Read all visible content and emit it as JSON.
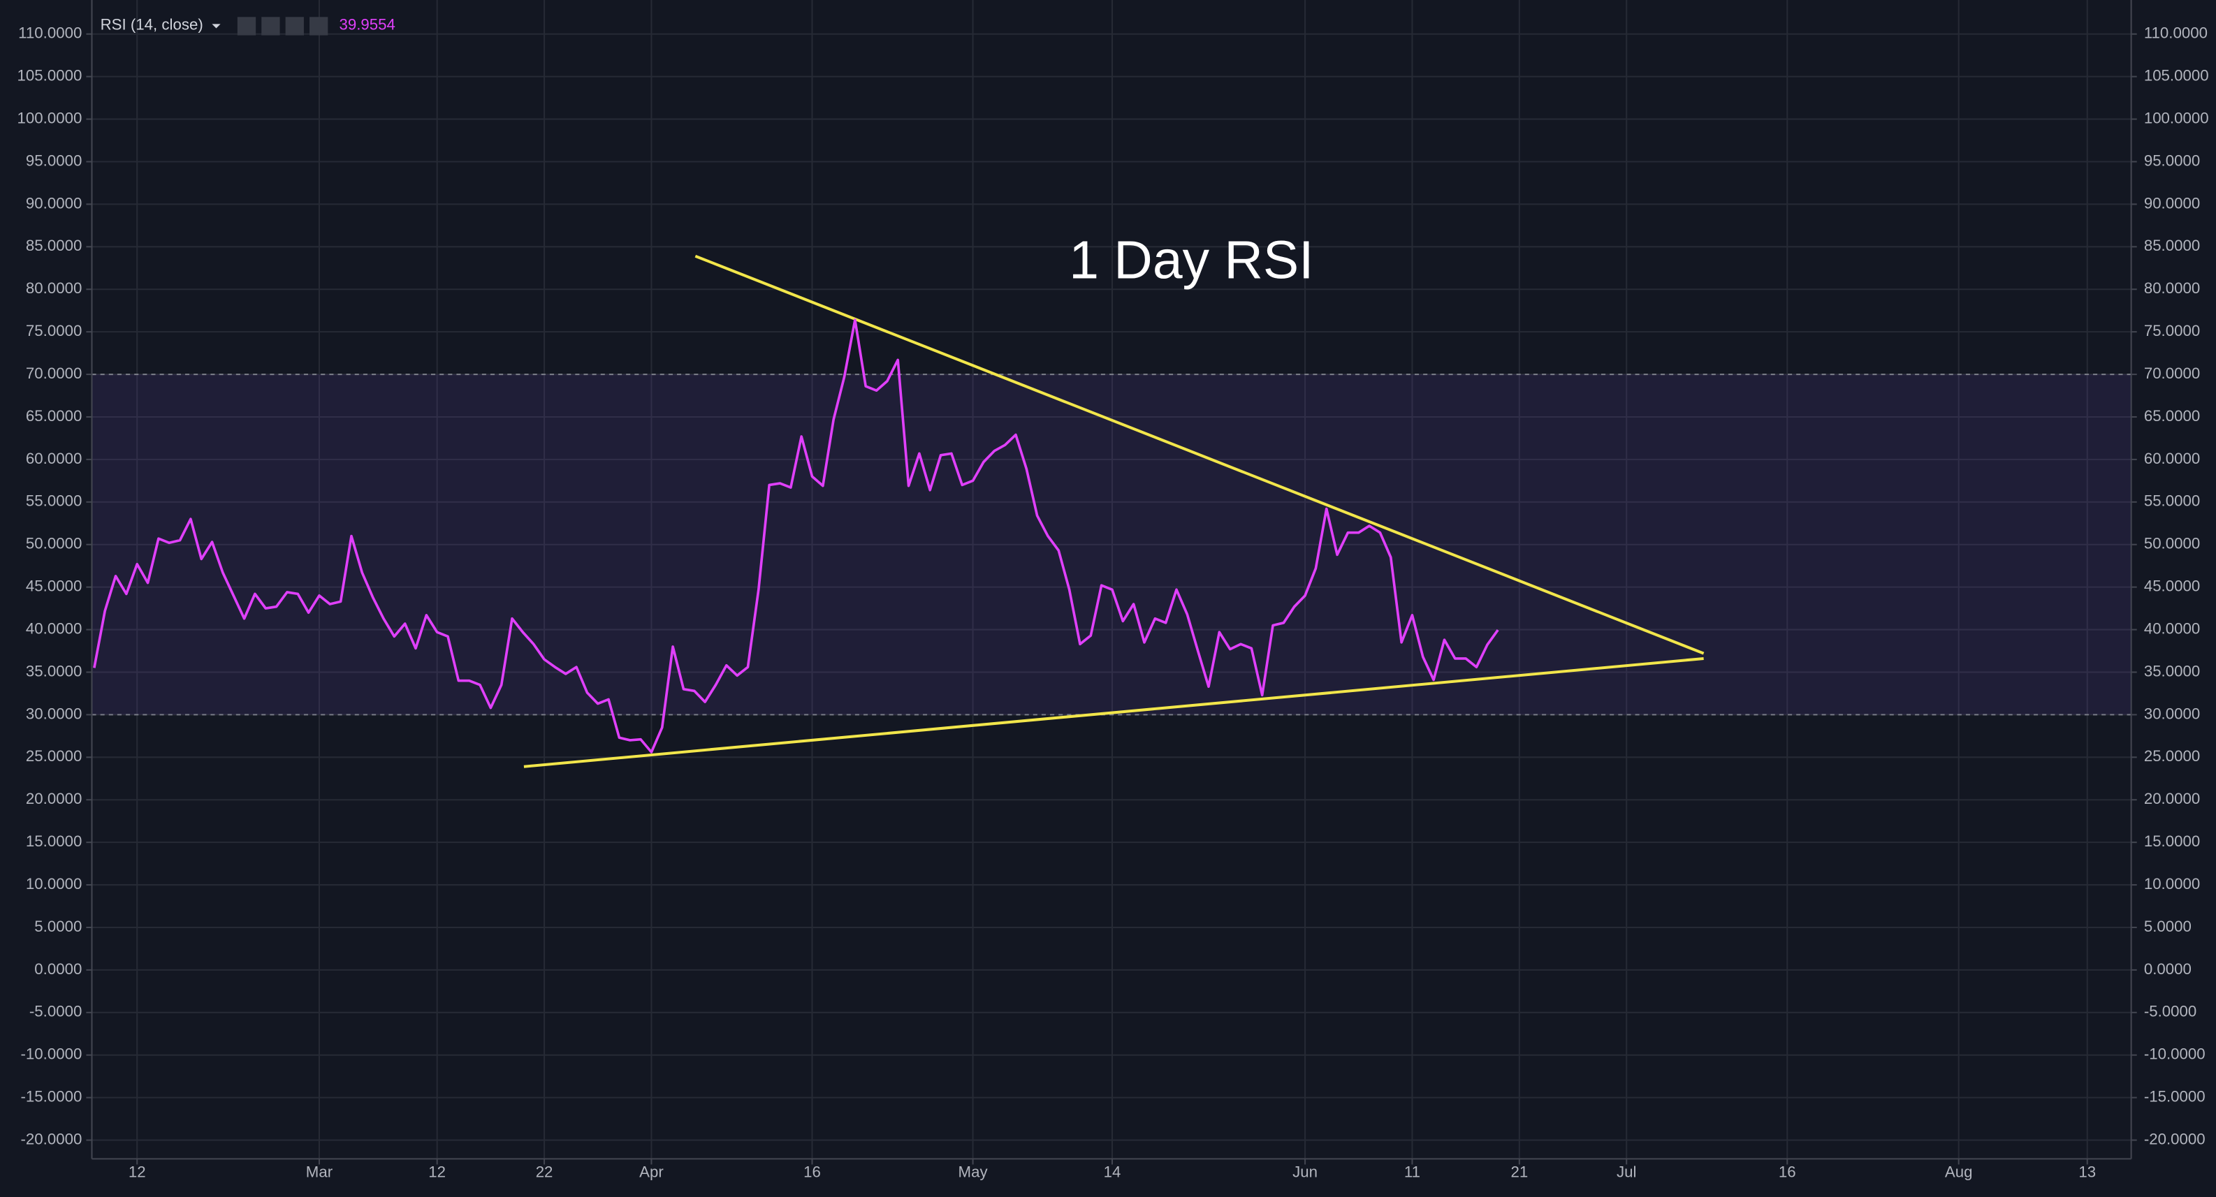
{
  "chart_data": {
    "type": "line",
    "title": "1 Day RSI",
    "indicator_label": "RSI (14, close)",
    "x": [
      -4,
      -3,
      -2,
      -1,
      0,
      1,
      2,
      3,
      4,
      5,
      6,
      7,
      8,
      9,
      10,
      11,
      12,
      13,
      14,
      15,
      16,
      17,
      18,
      19,
      20,
      21,
      22,
      23,
      24,
      25,
      26,
      27,
      28,
      29,
      30,
      31,
      32,
      33,
      34,
      35,
      36,
      37,
      38,
      39,
      40,
      41,
      42,
      43,
      44,
      45,
      46,
      47,
      48,
      49,
      50,
      51,
      52,
      53,
      54,
      55,
      56,
      57,
      58,
      59,
      60,
      61,
      62,
      63,
      64,
      65,
      66,
      67,
      68,
      69,
      70,
      71,
      72,
      73,
      74,
      75,
      76,
      77,
      78,
      79,
      80,
      81,
      82,
      83,
      84,
      85,
      86,
      87,
      88,
      89,
      90,
      91,
      92,
      93,
      94,
      95,
      96,
      97,
      98,
      99,
      100,
      101,
      102,
      103,
      104,
      105,
      106,
      107,
      108,
      109,
      110,
      111,
      112,
      113,
      114,
      115,
      116,
      117,
      118,
      119,
      120,
      121,
      122,
      123,
      124,
      125,
      126,
      127
    ],
    "series": [
      {
        "color": "#e040fb",
        "values": [
          35.5,
          42.2,
          46.3,
          44.2,
          47.7,
          45.5,
          50.7,
          50.2,
          50.5,
          53.0,
          48.3,
          50.3,
          46.7,
          44.0,
          41.3,
          44.2,
          42.5,
          42.7,
          44.4,
          44.2,
          42.0,
          44.0,
          43.0,
          43.3,
          51.0,
          46.7,
          43.8,
          41.3,
          39.2,
          40.7,
          37.8,
          41.7,
          39.7,
          39.2,
          34.0,
          34.0,
          33.5,
          30.8,
          33.5,
          41.3,
          39.7,
          38.3,
          36.5,
          35.6,
          34.8,
          35.6,
          32.6,
          31.3,
          31.8,
          27.3,
          27.0,
          27.1,
          25.6,
          28.5,
          38.0,
          33.0,
          32.8,
          31.5,
          33.5,
          35.8,
          34.6,
          35.6,
          44.7,
          57.0,
          57.2,
          56.7,
          62.7,
          58.0,
          56.9,
          64.7,
          69.7,
          76.4,
          68.6,
          68.1,
          69.2,
          71.7,
          56.9,
          60.7,
          56.4,
          60.5,
          60.7,
          57.0,
          57.5,
          59.7,
          61.0,
          61.7,
          62.9,
          58.9,
          53.4,
          51.0,
          49.3,
          44.7,
          38.3,
          39.3,
          45.2,
          44.7,
          41.0,
          43.0,
          38.5,
          41.3,
          40.8,
          44.7,
          41.8,
          37.5,
          33.3,
          39.7,
          37.7,
          38.3,
          37.8,
          32.3,
          40.5,
          40.8,
          42.7,
          44.0,
          47.2,
          54.2,
          48.8,
          51.4,
          51.4,
          52.2,
          51.4,
          48.5,
          38.5,
          41.7,
          36.8,
          34.1,
          38.8,
          36.6,
          36.6,
          35.6,
          38.2,
          39.9554
        ]
      }
    ],
    "band": [
      30,
      70
    ],
    "band_color": "#7b52d6",
    "trendlines": [
      {
        "x": [
          52.1,
          146.2
        ],
        "values": [
          83.9,
          37.2
        ],
        "color": "#f2e64b"
      },
      {
        "x": [
          36.1,
          146.2
        ],
        "values": [
          23.9,
          36.6
        ],
        "color": "#f2e64b"
      }
    ],
    "xlim": [
      -4.22,
      186.1
    ],
    "ylim": [
      -22.2,
      114
    ],
    "xticks": [
      {
        "value": 0,
        "label": "12"
      },
      {
        "value": 17,
        "label": "Mar"
      },
      {
        "value": 28,
        "label": "12"
      },
      {
        "value": 38,
        "label": "22"
      },
      {
        "value": 48,
        "label": "Apr"
      },
      {
        "value": 63,
        "label": "16"
      },
      {
        "value": 78,
        "label": "May"
      },
      {
        "value": 91,
        "label": "14"
      },
      {
        "value": 109,
        "label": "Jun"
      },
      {
        "value": 119,
        "label": "11"
      },
      {
        "value": 129,
        "label": "21"
      },
      {
        "value": 139,
        "label": "Jul"
      },
      {
        "value": 154,
        "label": "16"
      },
      {
        "value": 170,
        "label": "Aug"
      },
      {
        "value": 182,
        "label": "13"
      }
    ],
    "yticks": [
      {
        "value": 110,
        "label": "110.0000"
      },
      {
        "value": 105,
        "label": "105.0000"
      },
      {
        "value": 100,
        "label": "100.0000"
      },
      {
        "value": 95,
        "label": "95.0000"
      },
      {
        "value": 90,
        "label": "90.0000"
      },
      {
        "value": 85,
        "label": "85.0000"
      },
      {
        "value": 80,
        "label": "80.0000"
      },
      {
        "value": 75,
        "label": "75.0000"
      },
      {
        "value": 70,
        "label": "70.0000"
      },
      {
        "value": 65,
        "label": "65.0000"
      },
      {
        "value": 60,
        "label": "60.0000"
      },
      {
        "value": 55,
        "label": "55.0000"
      },
      {
        "value": 50,
        "label": "50.0000"
      },
      {
        "value": 45,
        "label": "45.0000"
      },
      {
        "value": 40,
        "label": "40.0000"
      },
      {
        "value": 35,
        "label": "35.0000"
      },
      {
        "value": 30,
        "label": "30.0000"
      },
      {
        "value": 25,
        "label": "25.0000"
      },
      {
        "value": 20,
        "label": "20.0000"
      },
      {
        "value": 15,
        "label": "15.0000"
      },
      {
        "value": 10,
        "label": "10.0000"
      },
      {
        "value": 5,
        "label": "5.0000"
      },
      {
        "value": 0,
        "label": "0.0000"
      },
      {
        "value": -5,
        "label": "-5.0000"
      },
      {
        "value": -10,
        "label": "-10.0000"
      },
      {
        "value": -15,
        "label": "-15.0000"
      },
      {
        "value": -20,
        "label": "-20.0000"
      }
    ],
    "grid": true
  }
}
